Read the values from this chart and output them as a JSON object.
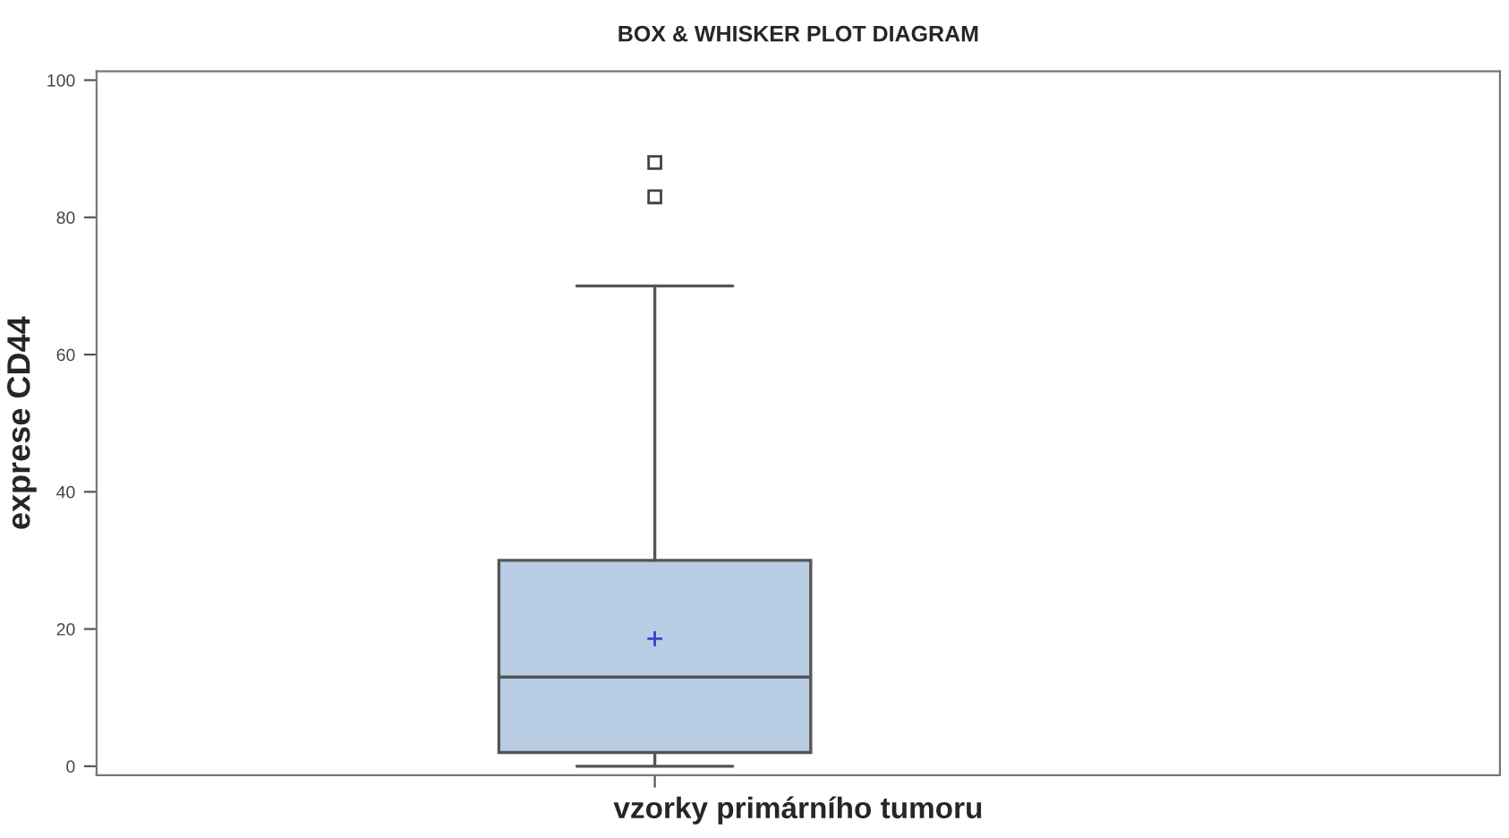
{
  "chart_data": {
    "type": "box",
    "title": "BOX & WHISKER PLOT DIAGRAM",
    "xlabel": "vzorky primárního tumoru",
    "ylabel": "exprese CD44",
    "categories": [
      null
    ],
    "boxes": [
      {
        "low": 0,
        "q1": 2,
        "median": 13,
        "q3": 30,
        "high": 70,
        "mean": 18.6,
        "outliers": [
          83,
          88
        ]
      }
    ],
    "color": "#b8cce4",
    "ylim": [
      -1.3,
      101.3
    ],
    "yticks": [
      0,
      20,
      40,
      60,
      80,
      100
    ],
    "grid": false
  }
}
